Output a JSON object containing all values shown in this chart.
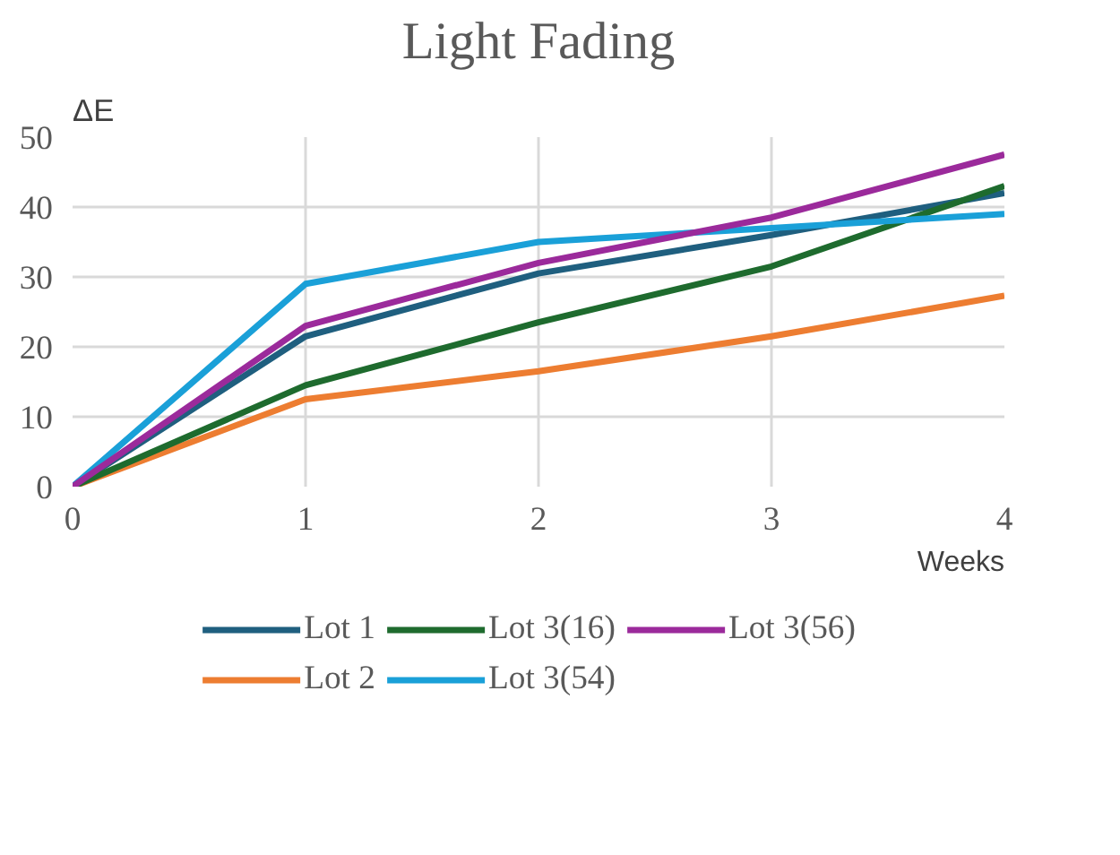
{
  "chart_data": {
    "type": "line",
    "title": "Light Fading",
    "xlabel": "Weeks",
    "ylabel": "ΔE",
    "x": [
      0,
      1,
      2,
      3,
      4
    ],
    "series": [
      {
        "name": "Lot 1",
        "color": "#1f5f7f",
        "values": [
          0,
          21.5,
          30.5,
          36,
          42
        ]
      },
      {
        "name": "Lot 2",
        "color": "#ed7d31",
        "values": [
          0,
          12.5,
          16.5,
          21.5,
          27.3
        ]
      },
      {
        "name": "Lot 3(16)",
        "color": "#1e6b2e",
        "values": [
          0,
          14.5,
          23.5,
          31.5,
          43
        ]
      },
      {
        "name": "Lot 3(54)",
        "color": "#1aa0d8",
        "values": [
          0,
          29,
          35,
          37,
          39
        ]
      },
      {
        "name": "Lot 3(56)",
        "color": "#9b2a9b",
        "values": [
          0,
          23,
          32,
          38.5,
          47.5
        ]
      }
    ],
    "xlim": [
      0,
      4
    ],
    "ylim": [
      0,
      50
    ],
    "xticks": [
      0,
      1,
      2,
      3,
      4
    ],
    "yticks": [
      0,
      10,
      20,
      30,
      40,
      50
    ],
    "grid": true,
    "legend": "bottom",
    "marker": "none",
    "line_style": "solid"
  }
}
